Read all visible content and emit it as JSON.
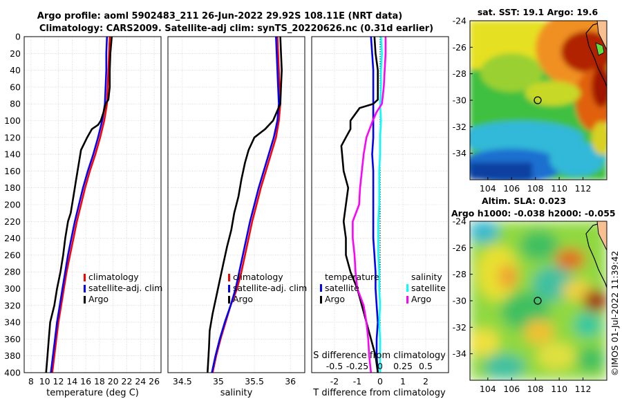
{
  "header": {
    "line1": "Argo profile: aoml 5902483_211 26-Jun-2022 29.92S 108.11E (NRT data)",
    "line2": "Climatology: CARS2009. Satellite-adj clim: synTS_20220626.nc (0.31d earlier)"
  },
  "credit": "©IMOS 01-Jul-2022 11:39:42",
  "colors": {
    "climatology": "#ff0000",
    "satellite": "#0000ff",
    "argo": "#000000",
    "s_satellite": "#00ffff",
    "s_argo": "#ff00ff"
  },
  "chart_data": [
    {
      "type": "line",
      "title": "",
      "xlabel": "temperature (deg C)",
      "ylabel": "",
      "xlim": [
        7,
        27
      ],
      "ylim": [
        400,
        0
      ],
      "xticks": [
        8,
        10,
        12,
        14,
        16,
        18,
        20,
        22,
        24,
        26
      ],
      "yticks": [
        0,
        20,
        40,
        60,
        80,
        100,
        120,
        140,
        160,
        180,
        200,
        220,
        240,
        260,
        280,
        300,
        320,
        340,
        360,
        380,
        400
      ],
      "grid": true,
      "legend": [
        "climatology",
        "satellite-adj. clim",
        "Argo"
      ],
      "series": [
        {
          "name": "climatology",
          "color": "#ff0000",
          "points": [
            [
              19.5,
              0
            ],
            [
              19.4,
              20
            ],
            [
              19.3,
              40
            ],
            [
              19.2,
              60
            ],
            [
              19.1,
              80
            ],
            [
              18.7,
              100
            ],
            [
              18.1,
              120
            ],
            [
              17.4,
              140
            ],
            [
              16.6,
              160
            ],
            [
              15.9,
              180
            ],
            [
              15.3,
              200
            ],
            [
              14.7,
              220
            ],
            [
              14.2,
              240
            ],
            [
              13.7,
              260
            ],
            [
              13.2,
              280
            ],
            [
              12.8,
              300
            ],
            [
              12.4,
              320
            ],
            [
              12.0,
              340
            ],
            [
              11.7,
              360
            ],
            [
              11.4,
              380
            ],
            [
              11.1,
              400
            ]
          ]
        },
        {
          "name": "satellite-adj. clim",
          "color": "#0000ff",
          "points": [
            [
              19.1,
              0
            ],
            [
              19.0,
              20
            ],
            [
              19.0,
              40
            ],
            [
              18.9,
              60
            ],
            [
              18.8,
              80
            ],
            [
              18.4,
              100
            ],
            [
              17.8,
              120
            ],
            [
              17.1,
              140
            ],
            [
              16.3,
              160
            ],
            [
              15.6,
              180
            ],
            [
              15.0,
              200
            ],
            [
              14.4,
              220
            ],
            [
              13.9,
              240
            ],
            [
              13.4,
              260
            ],
            [
              13.0,
              280
            ],
            [
              12.6,
              300
            ],
            [
              12.2,
              320
            ],
            [
              11.8,
              340
            ],
            [
              11.5,
              360
            ],
            [
              11.2,
              380
            ],
            [
              10.9,
              400
            ]
          ]
        },
        {
          "name": "Argo",
          "color": "#000000",
          "points": [
            [
              19.8,
              0
            ],
            [
              19.7,
              10
            ],
            [
              19.6,
              20
            ],
            [
              19.5,
              40
            ],
            [
              19.5,
              60
            ],
            [
              19.3,
              75
            ],
            [
              18.9,
              80
            ],
            [
              18.6,
              90
            ],
            [
              18.2,
              100
            ],
            [
              17.8,
              105
            ],
            [
              16.9,
              110
            ],
            [
              16.2,
              120
            ],
            [
              15.3,
              135
            ],
            [
              15.0,
              150
            ],
            [
              14.6,
              170
            ],
            [
              14.2,
              190
            ],
            [
              13.8,
              210
            ],
            [
              13.4,
              220
            ],
            [
              13.0,
              240
            ],
            [
              12.7,
              260
            ],
            [
              12.3,
              280
            ],
            [
              11.8,
              300
            ],
            [
              11.4,
              320
            ],
            [
              10.8,
              340
            ],
            [
              10.6,
              360
            ],
            [
              10.4,
              380
            ],
            [
              10.2,
              400
            ]
          ]
        }
      ]
    },
    {
      "type": "line",
      "xlabel": "salinity",
      "xlim": [
        34.3,
        36.2
      ],
      "ylim": [
        400,
        0
      ],
      "xticks": [
        34.5,
        35,
        35.5,
        36
      ],
      "xtick_labels": [
        "34.5",
        "35",
        "35.5",
        "36"
      ],
      "grid": true,
      "legend": [
        "climatology",
        "satellite-adj. clim",
        "Argo"
      ],
      "series": [
        {
          "name": "climatology",
          "color": "#ff0000",
          "points": [
            [
              35.82,
              0
            ],
            [
              35.83,
              20
            ],
            [
              35.84,
              40
            ],
            [
              35.85,
              60
            ],
            [
              35.86,
              80
            ],
            [
              35.84,
              100
            ],
            [
              35.8,
              120
            ],
            [
              35.73,
              140
            ],
            [
              35.66,
              160
            ],
            [
              35.59,
              180
            ],
            [
              35.53,
              200
            ],
            [
              35.47,
              220
            ],
            [
              35.42,
              240
            ],
            [
              35.37,
              260
            ],
            [
              35.32,
              280
            ],
            [
              35.26,
              300
            ],
            [
              35.17,
              320
            ],
            [
              35.1,
              340
            ],
            [
              35.03,
              360
            ],
            [
              34.97,
              380
            ],
            [
              34.92,
              400
            ]
          ]
        },
        {
          "name": "satellite-adj. clim",
          "color": "#0000ff",
          "points": [
            [
              35.8,
              0
            ],
            [
              35.81,
              20
            ],
            [
              35.82,
              40
            ],
            [
              35.83,
              60
            ],
            [
              35.84,
              80
            ],
            [
              35.82,
              100
            ],
            [
              35.77,
              120
            ],
            [
              35.7,
              140
            ],
            [
              35.63,
              160
            ],
            [
              35.56,
              180
            ],
            [
              35.5,
              200
            ],
            [
              35.44,
              220
            ],
            [
              35.39,
              240
            ],
            [
              35.34,
              260
            ],
            [
              35.29,
              280
            ],
            [
              35.24,
              300
            ],
            [
              35.17,
              320
            ],
            [
              35.09,
              340
            ],
            [
              35.02,
              360
            ],
            [
              34.96,
              380
            ],
            [
              34.91,
              400
            ]
          ]
        },
        {
          "name": "Argo",
          "color": "#000000",
          "points": [
            [
              35.86,
              0
            ],
            [
              35.87,
              20
            ],
            [
              35.88,
              40
            ],
            [
              35.87,
              60
            ],
            [
              35.86,
              80
            ],
            [
              35.76,
              100
            ],
            [
              35.65,
              110
            ],
            [
              35.5,
              120
            ],
            [
              35.42,
              135
            ],
            [
              35.37,
              150
            ],
            [
              35.32,
              170
            ],
            [
              35.28,
              190
            ],
            [
              35.22,
              210
            ],
            [
              35.18,
              230
            ],
            [
              35.12,
              250
            ],
            [
              35.07,
              270
            ],
            [
              35.02,
              290
            ],
            [
              34.97,
              310
            ],
            [
              34.92,
              330
            ],
            [
              34.88,
              350
            ],
            [
              34.87,
              370
            ],
            [
              34.85,
              400
            ]
          ]
        }
      ]
    },
    {
      "type": "line",
      "xlabel": "T difference from climatology",
      "xlabel_top": "S difference from climatology",
      "xlim": [
        -3,
        3
      ],
      "xlim_top": [
        -0.75,
        0.75
      ],
      "ylim": [
        400,
        0
      ],
      "xticks": [
        -2,
        -1,
        0,
        1,
        2
      ],
      "xticks_top": [
        -0.5,
        -0.25,
        0,
        0.25,
        0.5
      ],
      "xtick_labels_top": [
        "-0.5",
        "-0.25",
        "0",
        "0.25",
        "0.5"
      ],
      "grid": true,
      "legend_left_title": "temperature",
      "legend_right_title": "salinity",
      "legend_left": [
        "satellite",
        "Argo"
      ],
      "legend_right": [
        "satellite",
        "Argo"
      ],
      "series": [
        {
          "name": "temperature satellite",
          "color": "#0000ff",
          "axis": "T",
          "points": [
            [
              -0.4,
              0
            ],
            [
              -0.35,
              20
            ],
            [
              -0.3,
              40
            ],
            [
              -0.3,
              60
            ],
            [
              -0.3,
              80
            ],
            [
              -0.3,
              100
            ],
            [
              -0.3,
              120
            ],
            [
              -0.35,
              140
            ],
            [
              -0.3,
              160
            ],
            [
              -0.3,
              180
            ],
            [
              -0.3,
              200
            ],
            [
              -0.3,
              220
            ],
            [
              -0.3,
              240
            ],
            [
              -0.25,
              260
            ],
            [
              -0.2,
              280
            ],
            [
              -0.2,
              300
            ],
            [
              -0.15,
              320
            ],
            [
              -0.1,
              340
            ],
            [
              -0.15,
              360
            ],
            [
              -0.15,
              380
            ],
            [
              -0.1,
              400
            ]
          ]
        },
        {
          "name": "temperature Argo",
          "color": "#000000",
          "axis": "T",
          "points": [
            [
              -0.25,
              0
            ],
            [
              -0.2,
              20
            ],
            [
              -0.1,
              40
            ],
            [
              -0.1,
              60
            ],
            [
              -0.1,
              75
            ],
            [
              -0.3,
              80
            ],
            [
              -0.9,
              85
            ],
            [
              -1.3,
              100
            ],
            [
              -1.3,
              110
            ],
            [
              -1.5,
              120
            ],
            [
              -1.7,
              130
            ],
            [
              -1.6,
              160
            ],
            [
              -1.4,
              180
            ],
            [
              -1.5,
              200
            ],
            [
              -1.6,
              220
            ],
            [
              -1.5,
              240
            ],
            [
              -1.5,
              260
            ],
            [
              -1.3,
              280
            ],
            [
              -1.0,
              300
            ],
            [
              -0.8,
              320
            ],
            [
              -0.6,
              340
            ],
            [
              -0.4,
              360
            ],
            [
              -0.2,
              380
            ],
            [
              -0.1,
              400
            ]
          ]
        },
        {
          "name": "salinity satellite",
          "color": "#00ffff",
          "axis": "S",
          "points": [
            [
              0.01,
              0
            ],
            [
              0.02,
              20
            ],
            [
              0.01,
              40
            ],
            [
              0.01,
              60
            ],
            [
              0.0,
              80
            ],
            [
              0.01,
              100
            ],
            [
              0.0,
              120
            ],
            [
              0.0,
              140
            ],
            [
              -0.01,
              160
            ],
            [
              -0.01,
              180
            ],
            [
              -0.01,
              200
            ],
            [
              -0.02,
              220
            ],
            [
              -0.02,
              240
            ],
            [
              -0.02,
              260
            ],
            [
              -0.01,
              280
            ],
            [
              -0.01,
              300
            ],
            [
              0.0,
              320
            ],
            [
              -0.01,
              340
            ],
            [
              0.0,
              360
            ],
            [
              0.0,
              380
            ],
            [
              0.0,
              400
            ]
          ]
        },
        {
          "name": "salinity Argo",
          "color": "#ff00ff",
          "axis": "S",
          "points": [
            [
              0.06,
              0
            ],
            [
              0.06,
              20
            ],
            [
              0.05,
              40
            ],
            [
              0.04,
              60
            ],
            [
              0.02,
              80
            ],
            [
              -0.04,
              90
            ],
            [
              -0.08,
              100
            ],
            [
              -0.15,
              120
            ],
            [
              -0.18,
              140
            ],
            [
              -0.2,
              160
            ],
            [
              -0.22,
              180
            ],
            [
              -0.23,
              200
            ],
            [
              -0.3,
              220
            ],
            [
              -0.3,
              240
            ],
            [
              -0.28,
              260
            ],
            [
              -0.27,
              280
            ],
            [
              -0.25,
              300
            ],
            [
              -0.18,
              320
            ],
            [
              -0.15,
              340
            ],
            [
              -0.13,
              360
            ],
            [
              -0.12,
              380
            ],
            [
              -0.1,
              400
            ]
          ]
        }
      ]
    },
    {
      "type": "heatmap",
      "title": "sat. SST: 19.1 Argo: 19.6",
      "xlim": [
        102.5,
        114
      ],
      "ylim": [
        -36,
        -24
      ],
      "xticks": [
        104,
        106,
        108,
        110,
        112
      ],
      "yticks": [
        -24,
        -26,
        -28,
        -30,
        -32,
        -34
      ],
      "float_position": [
        108.11,
        -29.92
      ]
    },
    {
      "type": "heatmap",
      "title": "Altim. SLA: 0.023",
      "subtitle": "Argo h1000: -0.038 h2000: -0.055",
      "xlim": [
        102.5,
        114
      ],
      "ylim": [
        -36,
        -24
      ],
      "xticks": [
        104,
        106,
        108,
        110,
        112
      ],
      "yticks": [
        -24,
        -26,
        -28,
        -30,
        -32,
        -34
      ],
      "float_position": [
        108.11,
        -29.92
      ]
    }
  ]
}
